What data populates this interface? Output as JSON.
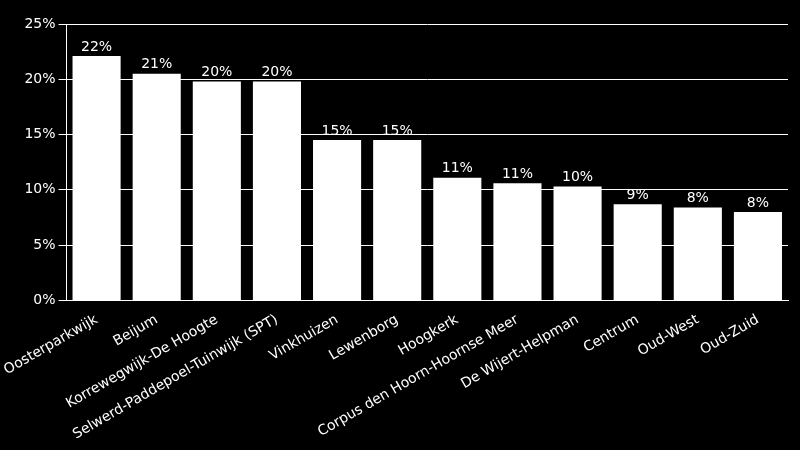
{
  "chart_data": {
    "type": "bar",
    "categories": [
      "Oosterparkwijk",
      "Beijum",
      "Korrewegwijk-De Hoogte",
      "Selwerd-Paddepoel-Tuinwijk (SPT)",
      "Vinkhuizen",
      "Lewenborg",
      "Hoogkerk",
      "Corpus den Hoorn-Hoornse Meer",
      "De Wijert-Helpman",
      "Centrum",
      "Oud-West",
      "Oud-Zuid"
    ],
    "values": [
      22.1,
      20.5,
      19.8,
      19.8,
      14.5,
      14.5,
      11.1,
      10.6,
      10.3,
      8.7,
      8.4,
      8.0
    ],
    "value_labels": [
      "22%",
      "21%",
      "20%",
      "20%",
      "15%",
      "15%",
      "11%",
      "11%",
      "10%",
      "9%",
      "8%",
      "8%"
    ],
    "data_labels": true,
    "color": "#ffffff",
    "ylim": [
      0,
      25
    ],
    "yticks": [
      {
        "value": 0,
        "label": "0%"
      },
      {
        "value": 5,
        "label": "5%"
      },
      {
        "value": 10,
        "label": "10%"
      },
      {
        "value": 15,
        "label": "15%"
      },
      {
        "value": 20,
        "label": "20%"
      },
      {
        "value": 25,
        "label": "25%"
      }
    ],
    "grid": true
  }
}
